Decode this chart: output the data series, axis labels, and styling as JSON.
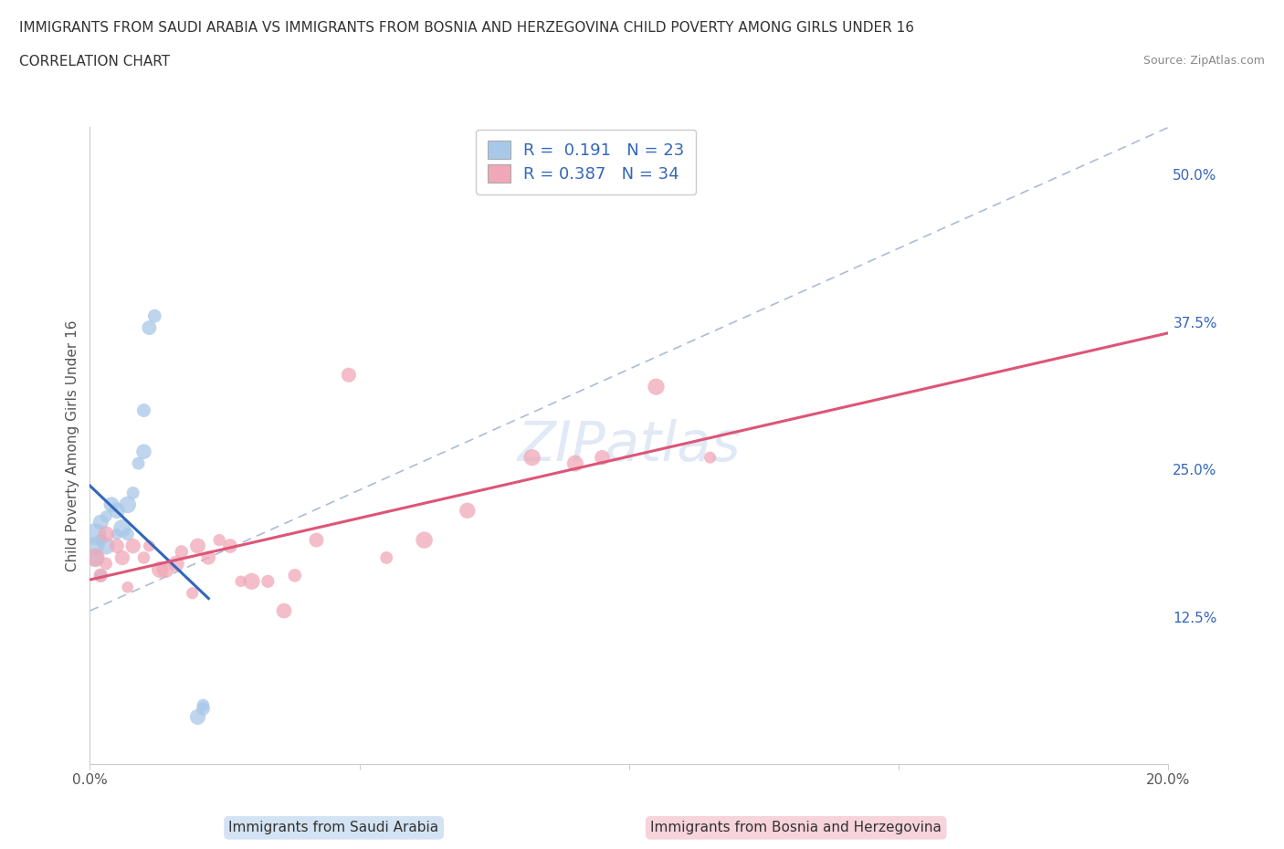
{
  "title_line1": "IMMIGRANTS FROM SAUDI ARABIA VS IMMIGRANTS FROM BOSNIA AND HERZEGOVINA CHILD POVERTY AMONG GIRLS UNDER 16",
  "title_line2": "CORRELATION CHART",
  "source": "Source: ZipAtlas.com",
  "ylabel": "Child Poverty Among Girls Under 16",
  "xlim": [
    0.0,
    0.2
  ],
  "ylim": [
    0.0,
    0.54
  ],
  "yticks": [
    0.0,
    0.125,
    0.25,
    0.375,
    0.5
  ],
  "ytick_labels": [
    "",
    "12.5%",
    "25.0%",
    "37.5%",
    "50.0%"
  ],
  "xticks": [
    0.0,
    0.05,
    0.1,
    0.15,
    0.2
  ],
  "xtick_labels": [
    "0.0%",
    "",
    "",
    "",
    "20.0%"
  ],
  "legend_label1": "Immigrants from Saudi Arabia",
  "legend_label2": "Immigrants from Bosnia and Herzegovina",
  "R1": 0.191,
  "N1": 23,
  "R2": 0.387,
  "N2": 34,
  "color1": "#a8c8e8",
  "color2": "#f0a8b8",
  "trendline_color1": "#3366bb",
  "trendline_color2": "#dd5577",
  "diag_color": "#99aacc",
  "background_color": "#ffffff",
  "watermark": "ZIPatlas",
  "saudi_x": [
    0.001,
    0.001,
    0.001,
    0.002,
    0.002,
    0.002,
    0.003,
    0.003,
    0.004,
    0.005,
    0.005,
    0.006,
    0.007,
    0.007,
    0.008,
    0.009,
    0.01,
    0.01,
    0.011,
    0.012,
    0.02,
    0.021,
    0.021
  ],
  "saudi_y": [
    0.195,
    0.185,
    0.175,
    0.205,
    0.19,
    0.16,
    0.21,
    0.185,
    0.22,
    0.215,
    0.195,
    0.2,
    0.22,
    0.195,
    0.23,
    0.255,
    0.3,
    0.265,
    0.37,
    0.38,
    0.04,
    0.05,
    0.047
  ],
  "bosnia_x": [
    0.001,
    0.002,
    0.003,
    0.003,
    0.005,
    0.006,
    0.007,
    0.008,
    0.01,
    0.011,
    0.013,
    0.014,
    0.016,
    0.017,
    0.019,
    0.02,
    0.022,
    0.024,
    0.026,
    0.028,
    0.03,
    0.033,
    0.036,
    0.038,
    0.042,
    0.048,
    0.055,
    0.062,
    0.07,
    0.082,
    0.09,
    0.095,
    0.105,
    0.115
  ],
  "bosnia_y": [
    0.175,
    0.16,
    0.195,
    0.17,
    0.185,
    0.175,
    0.15,
    0.185,
    0.175,
    0.185,
    0.165,
    0.165,
    0.17,
    0.18,
    0.145,
    0.185,
    0.175,
    0.19,
    0.185,
    0.155,
    0.155,
    0.155,
    0.13,
    0.16,
    0.19,
    0.33,
    0.175,
    0.19,
    0.215,
    0.26,
    0.255,
    0.26,
    0.32,
    0.26
  ]
}
